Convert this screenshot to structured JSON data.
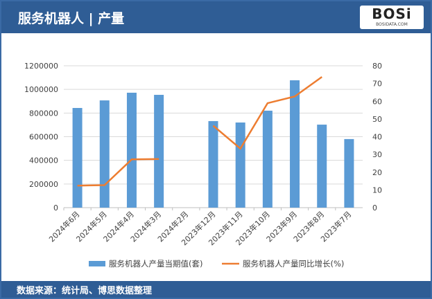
{
  "header": {
    "title": "服务机器人 | 产量",
    "logo_text": "BOSi",
    "logo_sub": "BOSIDATA.COM"
  },
  "footer": {
    "source": "数据来源：统计局、博思数据整理"
  },
  "colors": {
    "bar": "#5b9bd5",
    "line": "#ed7d31",
    "header": "#2f5d95"
  },
  "chart_data": {
    "type": "bar+line",
    "categories": [
      "2024年6月",
      "2024年5月",
      "2024年4月",
      "2024年3月",
      "2024年2月",
      "2023年12月",
      "2023年11月",
      "2023年10月",
      "2023年9月",
      "2023年8月",
      "2023年7月"
    ],
    "series": [
      {
        "name": "服务机器人产量当期值(套)",
        "type": "bar",
        "axis": "left",
        "values": [
          843000,
          907000,
          972000,
          954000,
          null,
          732000,
          720000,
          820000,
          1077000,
          702000,
          580000
        ]
      },
      {
        "name": "服务机器人产量同比增长(%)",
        "type": "line",
        "axis": "right",
        "values": [
          12.4,
          12.7,
          27.2,
          27.4,
          null,
          46.2,
          33.3,
          58.9,
          62.7,
          73.7,
          null
        ]
      }
    ],
    "y_left": {
      "range": [
        0,
        1200000
      ],
      "ticks": [
        0,
        200000,
        400000,
        600000,
        800000,
        1000000,
        1200000
      ]
    },
    "y_right": {
      "range": [
        0,
        80
      ],
      "ticks": [
        0,
        10,
        20,
        30,
        40,
        50,
        60,
        70,
        80
      ]
    },
    "grid": true,
    "legend": "bottom"
  }
}
